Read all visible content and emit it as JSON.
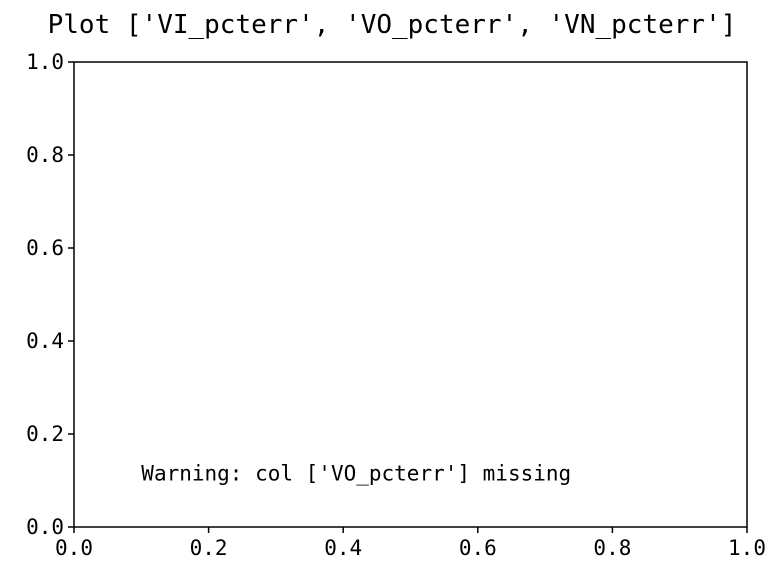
{
  "chart_data": {
    "type": "line",
    "title": "Plot ['VI_pcterr', 'VO_pcterr', 'VN_pcterr']",
    "xlabel": "",
    "ylabel": "",
    "xlim": [
      0.0,
      1.0
    ],
    "ylim": [
      0.0,
      1.0
    ],
    "x_ticks": [
      0.0,
      0.2,
      0.4,
      0.6,
      0.8,
      1.0
    ],
    "x_tick_labels": [
      "0.0",
      "0.2",
      "0.4",
      "0.6",
      "0.8",
      "1.0"
    ],
    "y_ticks": [
      0.0,
      0.2,
      0.4,
      0.6,
      0.8,
      1.0
    ],
    "y_tick_labels": [
      "0.0",
      "0.2",
      "0.4",
      "0.6",
      "0.8",
      "1.0"
    ],
    "grid": false,
    "series": [],
    "annotations": [
      {
        "text": "Warning: col ['VO_pcterr'] missing",
        "x": 0.1,
        "y": 0.1
      }
    ]
  }
}
